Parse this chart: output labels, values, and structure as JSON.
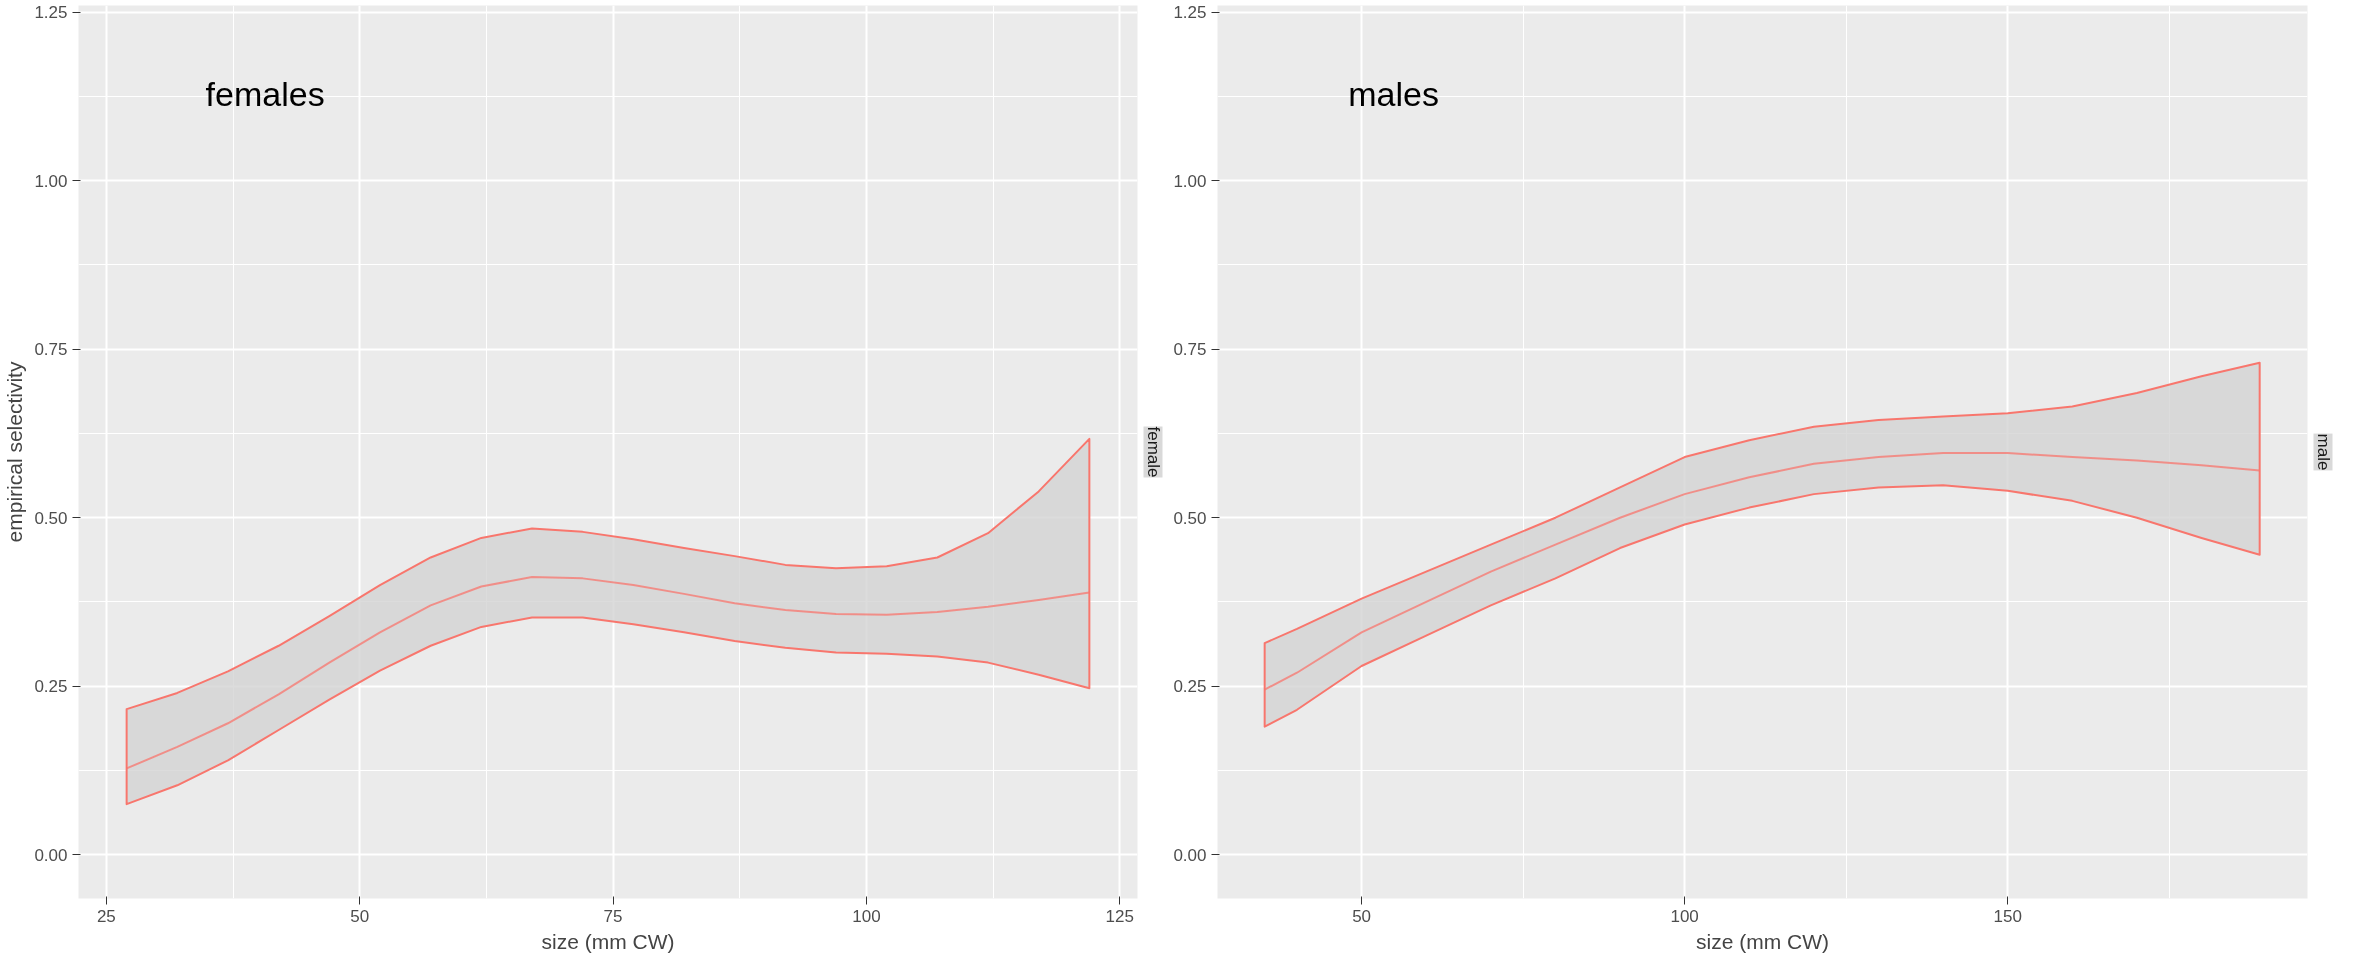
{
  "chart_data": [
    {
      "type": "line",
      "title": "female",
      "annotations": [
        "females"
      ],
      "xlabel": "size (mm CW)",
      "ylabel": "empirical selectivity",
      "x": [
        27,
        32,
        37,
        42,
        47,
        52,
        57,
        62,
        67,
        72,
        77,
        82,
        87,
        92,
        97,
        102,
        107,
        112,
        117,
        122
      ],
      "series": [
        {
          "color": "#f8766d",
          "values": [
            0.128,
            0.16,
            0.195,
            0.238,
            0.285,
            0.33,
            0.37,
            0.398,
            0.412,
            0.41,
            0.4,
            0.387,
            0.373,
            0.363,
            0.357,
            0.356,
            0.36,
            0.368,
            0.378,
            0.389
          ],
          "lower": [
            0.075,
            0.103,
            0.14,
            0.185,
            0.23,
            0.273,
            0.31,
            0.338,
            0.352,
            0.352,
            0.342,
            0.33,
            0.317,
            0.307,
            0.3,
            0.298,
            0.294,
            0.285,
            0.267,
            0.247
          ],
          "upper": [
            0.216,
            0.24,
            0.272,
            0.31,
            0.354,
            0.4,
            0.441,
            0.47,
            0.484,
            0.479,
            0.468,
            0.455,
            0.443,
            0.43,
            0.425,
            0.428,
            0.441,
            0.477,
            0.539,
            0.617
          ]
        }
      ],
      "xlim": [
        22.25,
        126.75
      ],
      "xticks": [
        25,
        50,
        75,
        100,
        125
      ],
      "ylim": [
        -0.065,
        1.26
      ],
      "yticks": [
        {
          "value": 0,
          "label": "0.00"
        },
        {
          "value": 0.25,
          "label": "0.25"
        },
        {
          "value": 0.5,
          "label": "0.50"
        },
        {
          "value": 0.75,
          "label": "0.75"
        },
        {
          "value": 1,
          "label": "1.00"
        },
        {
          "value": 1.25,
          "label": "1.25"
        }
      ],
      "grid": true,
      "marker": "none",
      "line_style": "solid"
    },
    {
      "type": "line",
      "title": "male",
      "annotations": [
        "males"
      ],
      "xlabel": "size (mm CW)",
      "x": [
        35,
        40,
        50,
        60,
        70,
        80,
        90,
        100,
        110,
        120,
        130,
        140,
        150,
        160,
        170,
        180,
        189
      ],
      "series": [
        {
          "color": "#f8766d",
          "values": [
            0.245,
            0.27,
            0.33,
            0.375,
            0.42,
            0.46,
            0.5,
            0.535,
            0.56,
            0.58,
            0.59,
            0.596,
            0.596,
            0.59,
            0.585,
            0.578,
            0.57
          ],
          "lower": [
            0.19,
            0.215,
            0.28,
            0.325,
            0.37,
            0.41,
            0.455,
            0.49,
            0.515,
            0.535,
            0.545,
            0.548,
            0.54,
            0.525,
            0.5,
            0.47,
            0.445
          ],
          "upper": [
            0.314,
            0.335,
            0.38,
            0.42,
            0.46,
            0.5,
            0.545,
            0.59,
            0.615,
            0.635,
            0.645,
            0.65,
            0.655,
            0.665,
            0.685,
            0.71,
            0.73
          ]
        }
      ],
      "xlim": [
        27.7,
        196.4
      ],
      "xticks": [
        50,
        100,
        150
      ],
      "ylim": [
        -0.065,
        1.26
      ],
      "yticks": [
        {
          "value": 0,
          "label": "0.00"
        },
        {
          "value": 0.25,
          "label": "0.25"
        },
        {
          "value": 0.5,
          "label": "0.50"
        },
        {
          "value": 0.75,
          "label": "0.75"
        },
        {
          "value": 1,
          "label": "1.00"
        },
        {
          "value": 1.25,
          "label": "1.25"
        }
      ],
      "grid": true,
      "marker": "none",
      "line_style": "solid"
    }
  ]
}
